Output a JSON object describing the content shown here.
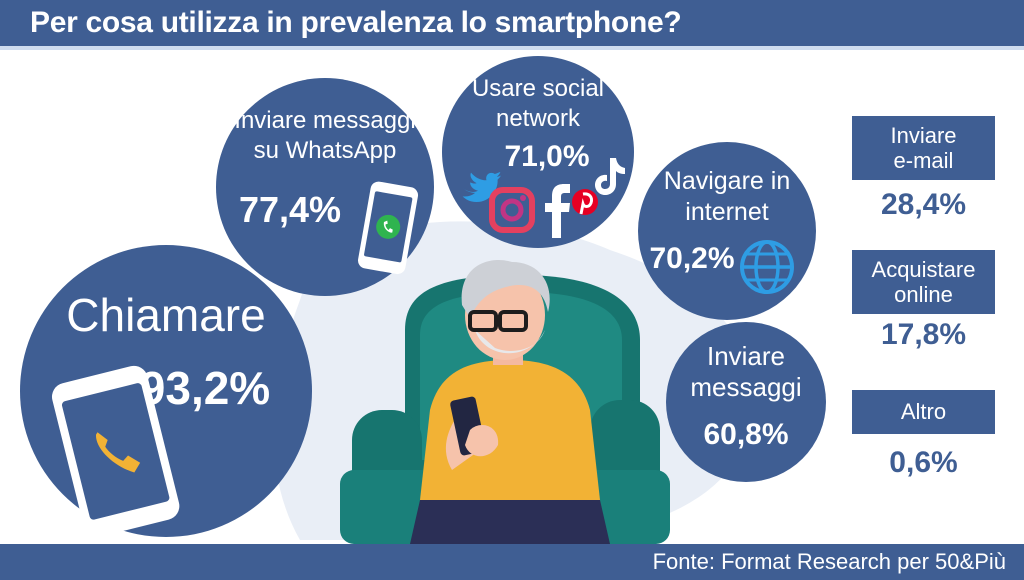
{
  "title": "Per cosa utilizza in prevalenza lo smartphone?",
  "source": "Fonte: Format Research per 50&Più",
  "colors": {
    "primary": "#3f5e93",
    "accent": "#f2b235",
    "icon_blue": "#2e9de4"
  },
  "icons": [
    "phone-call-icon",
    "whatsapp-icon",
    "twitter-icon",
    "instagram-icon",
    "facebook-icon",
    "pinterest-icon",
    "tiktok-icon",
    "globe-icon"
  ],
  "chart_data": {
    "type": "bar",
    "title": "Per cosa utilizza in prevalenza lo smartphone?",
    "unit": "%",
    "categories": [
      "Chiamare",
      "Inviare messaggi su WhatsApp",
      "Usare social network",
      "Navigare in internet",
      "Inviare messaggi",
      "Inviare e-mail",
      "Acquistare online",
      "Altro"
    ],
    "values": [
      93.2,
      77.4,
      71.0,
      70.2,
      60.8,
      28.4,
      17.8,
      0.6
    ],
    "display_values": [
      "93,2%",
      "77,4%",
      "71,0%",
      "70,2%",
      "60,8%",
      "28,4%",
      "17,8%",
      "0,6%"
    ],
    "source": "Fonte: Format Research per 50&Più"
  },
  "items": {
    "chiamare": {
      "lines": [
        "Chiamare"
      ],
      "value": "93,2%"
    },
    "whatsapp": {
      "lines": [
        "Inviare messaggi",
        "su WhatsApp"
      ],
      "value": "77,4%"
    },
    "social": {
      "lines": [
        "Usare social",
        "network"
      ],
      "value": "71,0%"
    },
    "internet": {
      "lines": [
        "Navigare in",
        "internet"
      ],
      "value": "70,2%"
    },
    "messaggi": {
      "lines": [
        "Inviare",
        "messaggi"
      ],
      "value": "60,8%"
    },
    "email": {
      "lines": [
        "Inviare",
        "e-mail"
      ],
      "value": "28,4%"
    },
    "online": {
      "lines": [
        "Acquistare",
        "online"
      ],
      "value": "17,8%"
    },
    "altro": {
      "lines": [
        "Altro"
      ],
      "value": "0,6%"
    }
  }
}
